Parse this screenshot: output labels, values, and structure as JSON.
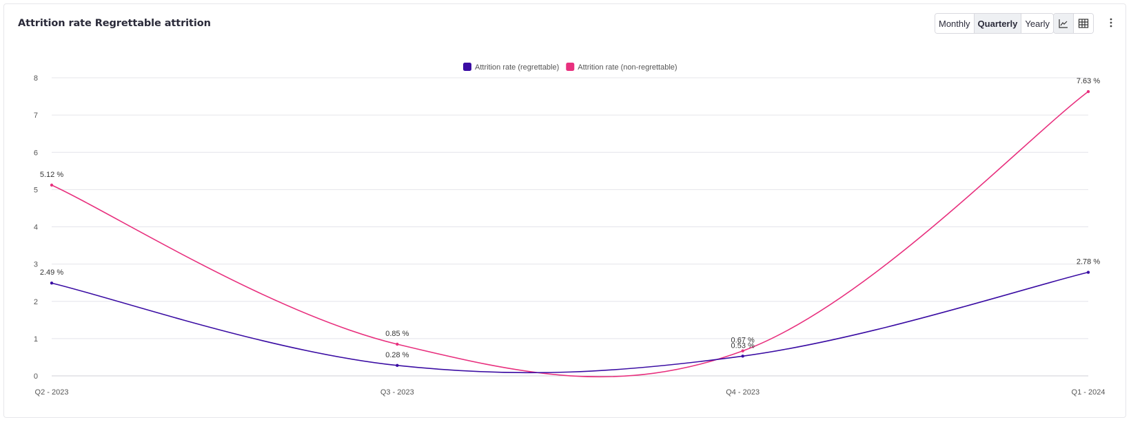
{
  "header": {
    "title": "Attrition rate Regrettable attrition",
    "periods": [
      {
        "label": "Monthly",
        "active": false
      },
      {
        "label": "Quarterly",
        "active": true
      },
      {
        "label": "Yearly",
        "active": false
      }
    ],
    "views": [
      {
        "icon": "line-chart-icon",
        "active": true
      },
      {
        "icon": "table-icon",
        "active": false
      }
    ],
    "more_icon": "more-vertical-icon"
  },
  "chart_data": {
    "type": "line",
    "categories": [
      "Q2 - 2023",
      "Q3 - 2023",
      "Q4 - 2023",
      "Q1 - 2024"
    ],
    "series": [
      {
        "name": "Attrition rate (regrettable)",
        "color": "#3a0ca3",
        "values": [
          2.49,
          0.28,
          0.53,
          2.78
        ],
        "labels": [
          "2.49 %",
          "0.28 %",
          "0.53 %",
          "2.78 %"
        ]
      },
      {
        "name": "Attrition rate (non-regrettable)",
        "color": "#e8307e",
        "values": [
          5.12,
          0.85,
          0.67,
          7.63
        ],
        "labels": [
          "5.12 %",
          "0.85 %",
          "0.67 %",
          "7.63 %"
        ]
      }
    ],
    "ylim": [
      0,
      8
    ],
    "yticks": [
      "0",
      "1",
      "2",
      "3",
      "4",
      "5",
      "6",
      "7",
      "8"
    ],
    "grid": true,
    "legend_position": "top-center"
  }
}
